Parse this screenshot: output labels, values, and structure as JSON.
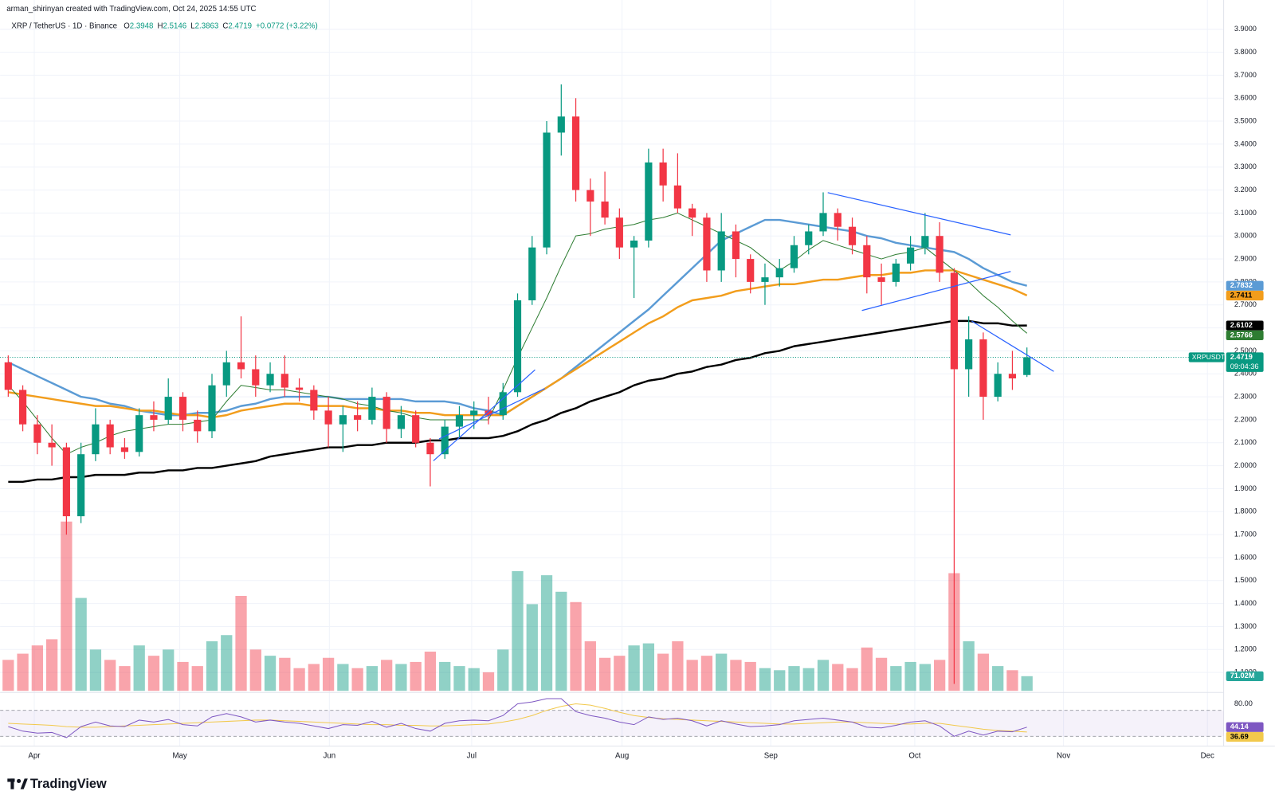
{
  "chart_data": {
    "type": "candlestick",
    "attribution": "arman_shirinyan created with TradingView.com, Oct 24, 2025 14:55 UTC",
    "symbol": "XRP / TetherUS · 1D · Binance",
    "ohlc_labels": [
      "O",
      "H",
      "L",
      "C"
    ],
    "change_label": "+0.0772 (+3.22%)",
    "ticker": "XRPUSDT",
    "countdown": "09:04:36",
    "footer": "TradingView",
    "up_color": "#089981",
    "down_color": "#f23645",
    "open": [
      2.45,
      2.33,
      2.18,
      2.1,
      2.08,
      1.78,
      2.05,
      2.18,
      2.08,
      2.06,
      2.22,
      2.2,
      2.3,
      2.2,
      2.15,
      2.35,
      2.45,
      2.42,
      2.35,
      2.4,
      2.34,
      2.33,
      2.24,
      2.18,
      2.22,
      2.2,
      2.3,
      2.16,
      2.22,
      2.1,
      2.05,
      2.17,
      2.22,
      2.24,
      2.22,
      2.32,
      2.72,
      2.95,
      3.45,
      3.52,
      3.2,
      3.15,
      3.08,
      2.95,
      2.98,
      3.32,
      3.22,
      3.12,
      3.08,
      2.85,
      3.02,
      2.9,
      2.8,
      2.82,
      2.86,
      2.96,
      3.02,
      3.1,
      3.04,
      2.96,
      2.82,
      2.8,
      2.88,
      2.95,
      3.0,
      2.84,
      2.42,
      2.55,
      2.3,
      2.4,
      2.3948
    ],
    "high": [
      2.48,
      2.35,
      2.22,
      2.18,
      2.1,
      2.1,
      2.25,
      2.2,
      2.12,
      2.25,
      2.28,
      2.38,
      2.32,
      2.24,
      2.4,
      2.5,
      2.65,
      2.48,
      2.45,
      2.48,
      2.38,
      2.35,
      2.3,
      2.26,
      2.28,
      2.34,
      2.32,
      2.26,
      2.24,
      2.12,
      2.2,
      2.26,
      2.28,
      2.3,
      2.36,
      2.75,
      3.0,
      3.5,
      3.66,
      3.6,
      3.25,
      3.28,
      3.12,
      3.0,
      3.38,
      3.38,
      3.36,
      3.14,
      3.1,
      3.1,
      3.05,
      2.92,
      2.88,
      2.9,
      3.0,
      3.05,
      3.19,
      3.12,
      3.08,
      3.0,
      2.88,
      2.9,
      3.0,
      3.1,
      3.06,
      2.86,
      2.65,
      2.58,
      2.45,
      2.5,
      2.5146
    ],
    "low": [
      2.3,
      2.15,
      2.05,
      2.0,
      1.7,
      1.75,
      2.02,
      2.05,
      2.03,
      2.04,
      2.15,
      2.18,
      2.15,
      2.1,
      2.12,
      2.3,
      2.38,
      2.3,
      2.32,
      2.3,
      2.28,
      2.2,
      2.08,
      2.06,
      2.15,
      2.18,
      2.1,
      2.12,
      2.08,
      1.91,
      2.03,
      2.12,
      2.16,
      2.18,
      2.2,
      2.3,
      2.7,
      2.92,
      3.35,
      3.15,
      3.0,
      3.05,
      2.9,
      2.73,
      2.95,
      3.15,
      3.1,
      3.0,
      2.8,
      2.8,
      2.82,
      2.75,
      2.7,
      2.78,
      2.84,
      2.92,
      3.0,
      2.98,
      2.92,
      2.75,
      2.7,
      2.78,
      2.85,
      2.92,
      2.8,
      1.05,
      2.3,
      2.2,
      2.28,
      2.33,
      2.3863
    ],
    "close": [
      2.33,
      2.18,
      2.1,
      2.08,
      1.78,
      2.05,
      2.18,
      2.08,
      2.06,
      2.22,
      2.2,
      2.3,
      2.2,
      2.15,
      2.35,
      2.45,
      2.42,
      2.35,
      2.4,
      2.34,
      2.33,
      2.24,
      2.18,
      2.22,
      2.2,
      2.3,
      2.16,
      2.22,
      2.1,
      2.05,
      2.17,
      2.22,
      2.24,
      2.22,
      2.32,
      2.72,
      2.95,
      3.45,
      3.52,
      3.2,
      3.15,
      3.08,
      2.95,
      2.98,
      3.32,
      3.22,
      3.12,
      3.08,
      2.85,
      3.02,
      2.9,
      2.8,
      2.82,
      2.86,
      2.96,
      3.02,
      3.1,
      3.04,
      2.96,
      2.82,
      2.8,
      2.88,
      2.95,
      3.0,
      2.84,
      2.42,
      2.55,
      2.3,
      2.4,
      2.38,
      2.4719
    ],
    "ylim": [
      1.02,
      3.96
    ],
    "yticks": [
      {
        "value": 3.9,
        "label": "3.9000"
      },
      {
        "value": 3.8,
        "label": "3.8000"
      },
      {
        "value": 3.7,
        "label": "3.7000"
      },
      {
        "value": 3.6,
        "label": "3.6000"
      },
      {
        "value": 3.5,
        "label": "3.5000"
      },
      {
        "value": 3.4,
        "label": "3.4000"
      },
      {
        "value": 3.3,
        "label": "3.3000"
      },
      {
        "value": 3.2,
        "label": "3.2000"
      },
      {
        "value": 3.1,
        "label": "3.1000"
      },
      {
        "value": 3.0,
        "label": "3.0000"
      },
      {
        "value": 2.9,
        "label": "2.9000"
      },
      {
        "value": 2.8,
        "label": "2.8000"
      },
      {
        "value": 2.7,
        "label": "2.7000"
      },
      {
        "value": 2.6,
        "label": "2.6000"
      },
      {
        "value": 2.5,
        "label": "2.5000"
      },
      {
        "value": 2.4,
        "label": "2.4000"
      },
      {
        "value": 2.3,
        "label": "2.3000"
      },
      {
        "value": 2.2,
        "label": "2.2000"
      },
      {
        "value": 2.1,
        "label": "2.1000"
      },
      {
        "value": 2.0,
        "label": "2.0000"
      },
      {
        "value": 1.9,
        "label": "1.9000"
      },
      {
        "value": 1.8,
        "label": "1.8000"
      },
      {
        "value": 1.7,
        "label": "1.7000"
      },
      {
        "value": 1.6,
        "label": "1.6000"
      },
      {
        "value": 1.5,
        "label": "1.5000"
      },
      {
        "value": 1.4,
        "label": "1.4000"
      },
      {
        "value": 1.3,
        "label": "1.3000"
      },
      {
        "value": 1.2,
        "label": "1.2000"
      },
      {
        "value": 1.1,
        "label": "1.1000"
      }
    ],
    "xticks": [
      "Apr",
      "May",
      "Jun",
      "Jul",
      "Aug",
      "Sep",
      "Oct",
      "Nov",
      "Dec"
    ],
    "grid": true,
    "moving_averages": [
      {
        "color": "#5b9bd5",
        "values": [
          2.45,
          2.42,
          2.39,
          2.36,
          2.33,
          2.3,
          2.29,
          2.27,
          2.26,
          2.24,
          2.23,
          2.22,
          2.22,
          2.23,
          2.23,
          2.24,
          2.26,
          2.27,
          2.29,
          2.3,
          2.3,
          2.3,
          2.3,
          2.29,
          2.29,
          2.29,
          2.29,
          2.29,
          2.28,
          2.28,
          2.28,
          2.27,
          2.25,
          2.24,
          2.22,
          2.26,
          2.3,
          2.34,
          2.38,
          2.43,
          2.48,
          2.53,
          2.58,
          2.63,
          2.68,
          2.74,
          2.8,
          2.86,
          2.92,
          2.98,
          3.01,
          3.04,
          3.07,
          3.07,
          3.06,
          3.05,
          3.04,
          3.03,
          3.02,
          3.0,
          2.99,
          2.97,
          2.96,
          2.95,
          2.94,
          2.93,
          2.9,
          2.86,
          2.83,
          2.8,
          2.7832
        ]
      },
      {
        "color": "#f29d1c",
        "values": [
          2.32,
          2.31,
          2.3,
          2.29,
          2.28,
          2.27,
          2.26,
          2.26,
          2.25,
          2.24,
          2.24,
          2.23,
          2.22,
          2.22,
          2.21,
          2.22,
          2.24,
          2.25,
          2.26,
          2.27,
          2.27,
          2.26,
          2.26,
          2.26,
          2.25,
          2.25,
          2.24,
          2.24,
          2.23,
          2.23,
          2.22,
          2.22,
          2.22,
          2.22,
          2.22,
          2.26,
          2.3,
          2.34,
          2.38,
          2.42,
          2.46,
          2.5,
          2.54,
          2.58,
          2.62,
          2.65,
          2.69,
          2.72,
          2.73,
          2.74,
          2.76,
          2.77,
          2.78,
          2.79,
          2.79,
          2.8,
          2.81,
          2.81,
          2.82,
          2.83,
          2.83,
          2.84,
          2.84,
          2.85,
          2.85,
          2.85,
          2.83,
          2.81,
          2.79,
          2.77,
          2.7411
        ]
      },
      {
        "color": "#000000",
        "values": [
          1.93,
          1.93,
          1.94,
          1.94,
          1.95,
          1.95,
          1.96,
          1.96,
          1.96,
          1.97,
          1.97,
          1.98,
          1.98,
          1.99,
          1.99,
          2.0,
          2.01,
          2.02,
          2.04,
          2.05,
          2.06,
          2.07,
          2.08,
          2.08,
          2.09,
          2.09,
          2.1,
          2.1,
          2.1,
          2.11,
          2.11,
          2.12,
          2.12,
          2.12,
          2.13,
          2.15,
          2.18,
          2.2,
          2.23,
          2.25,
          2.28,
          2.3,
          2.32,
          2.35,
          2.37,
          2.38,
          2.4,
          2.41,
          2.43,
          2.44,
          2.46,
          2.47,
          2.49,
          2.5,
          2.52,
          2.53,
          2.54,
          2.55,
          2.56,
          2.57,
          2.58,
          2.59,
          2.6,
          2.61,
          2.62,
          2.63,
          2.63,
          2.62,
          2.62,
          2.61,
          2.6102
        ]
      },
      {
        "color": "#2e7d32",
        "values": [
          2.35,
          2.28,
          2.2,
          2.12,
          2.05,
          2.08,
          2.1,
          2.13,
          2.15,
          2.16,
          2.17,
          2.18,
          2.18,
          2.19,
          2.2,
          2.28,
          2.35,
          2.34,
          2.33,
          2.33,
          2.32,
          2.31,
          2.3,
          2.29,
          2.27,
          2.26,
          2.24,
          2.23,
          2.21,
          2.2,
          2.2,
          2.2,
          2.2,
          2.2,
          2.33,
          2.47,
          2.6,
          2.73,
          2.87,
          3.0,
          3.01,
          3.03,
          3.04,
          3.05,
          3.07,
          3.08,
          3.1,
          3.07,
          3.04,
          3.01,
          2.98,
          2.95,
          2.9,
          2.85,
          2.89,
          2.94,
          2.98,
          2.96,
          2.94,
          2.92,
          2.9,
          2.92,
          2.93,
          2.95,
          2.9,
          2.85,
          2.8,
          2.74,
          2.69,
          2.63,
          2.5766
        ]
      }
    ],
    "volume": {
      "values": [
        150,
        180,
        220,
        250,
        820,
        450,
        200,
        150,
        120,
        220,
        170,
        200,
        140,
        120,
        240,
        270,
        460,
        200,
        170,
        160,
        110,
        130,
        160,
        130,
        110,
        120,
        150,
        130,
        140,
        190,
        140,
        120,
        110,
        90,
        200,
        580,
        420,
        560,
        480,
        430,
        240,
        160,
        170,
        220,
        230,
        180,
        240,
        150,
        170,
        180,
        150,
        140,
        110,
        100,
        120,
        110,
        150,
        130,
        110,
        210,
        160,
        120,
        140,
        130,
        150,
        570,
        240,
        180,
        120,
        100,
        71.02
      ],
      "value_labels": [
        null,
        null,
        null,
        null,
        null,
        null,
        null,
        null,
        null,
        null,
        null,
        null,
        null,
        null,
        null,
        null,
        null,
        null,
        null,
        null,
        null,
        null,
        null,
        null,
        null,
        null,
        null,
        null,
        null,
        null,
        null,
        null,
        null,
        null,
        null,
        null,
        null,
        null,
        null,
        null,
        null,
        null,
        null,
        null,
        null,
        null,
        null,
        null,
        null,
        null,
        null,
        null,
        null,
        null,
        null,
        null,
        null,
        null,
        null,
        null,
        null,
        null,
        null,
        null,
        null,
        null,
        null,
        null,
        null,
        null,
        "71.02M"
      ]
    },
    "rsi": {
      "ylim": [
        20,
        90
      ],
      "yticks": [
        {
          "value": 80,
          "label": "80.00"
        }
      ],
      "color": "#7e57c2",
      "values": [
        45,
        38,
        35,
        36,
        28,
        45,
        52,
        46,
        45,
        55,
        52,
        56,
        48,
        46,
        60,
        65,
        60,
        52,
        55,
        52,
        50,
        46,
        42,
        48,
        47,
        53,
        44,
        50,
        42,
        38,
        50,
        54,
        55,
        54,
        62,
        80,
        83,
        88,
        88,
        68,
        62,
        58,
        52,
        48,
        60,
        56,
        58,
        54,
        46,
        54,
        49,
        45,
        46,
        48,
        54,
        56,
        58,
        55,
        52,
        44,
        43,
        47,
        52,
        54,
        46,
        30,
        38,
        32,
        38,
        37,
        44.14
      ],
      "ma": {
        "color": "#f2c94c",
        "values": [
          50,
          49,
          48,
          47,
          45,
          44,
          44,
          45,
          46,
          47,
          48,
          49,
          50,
          51,
          52,
          53,
          54,
          55,
          55,
          54,
          53,
          52,
          51,
          50,
          49,
          48,
          48,
          47,
          47,
          46,
          46,
          47,
          48,
          49,
          52,
          56,
          62,
          70,
          76,
          80,
          78,
          73,
          67,
          62,
          59,
          57,
          56,
          55,
          54,
          53,
          52,
          51,
          50,
          49,
          49,
          50,
          51,
          52,
          52,
          51,
          50,
          49,
          49,
          50,
          50,
          47,
          44,
          41,
          39,
          38,
          36.69
        ]
      }
    }
  }
}
